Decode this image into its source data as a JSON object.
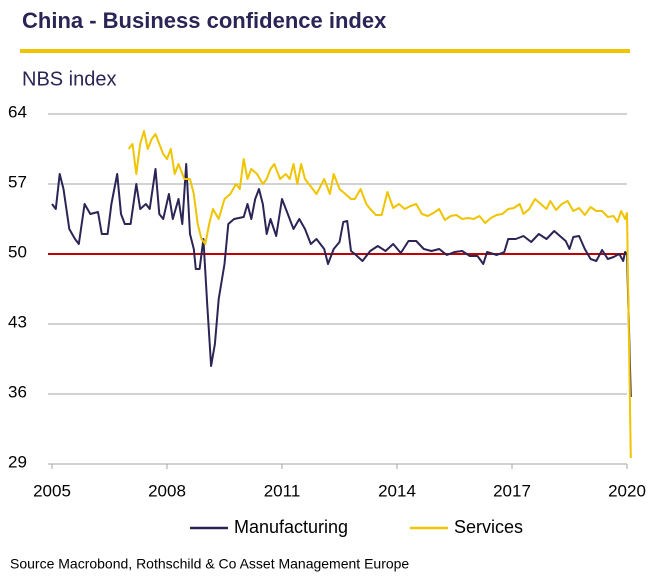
{
  "chart_data": {
    "type": "line",
    "title": "China - Business confidence index",
    "subtitle": "NBS index",
    "source": "Source Macrobond, Rothschild & Co Asset Management  Europe",
    "xlim": [
      2005,
      2020
    ],
    "xticks": [
      2005,
      2008,
      2011,
      2014,
      2017,
      2020
    ],
    "ylim": [
      29,
      64
    ],
    "yticks": [
      29,
      36,
      43,
      50,
      57,
      64
    ],
    "grid": true,
    "reference_line": {
      "value": 50,
      "color": "#c00000"
    },
    "legend": "bottom",
    "series": [
      {
        "name": "Manufacturing",
        "color": "#2b2556",
        "x": [
          2005.0,
          2005.1,
          2005.2,
          2005.3,
          2005.45,
          2005.6,
          2005.7,
          2005.85,
          2006.0,
          2006.2,
          2006.3,
          2006.45,
          2006.55,
          2006.7,
          2006.8,
          2006.9,
          2007.05,
          2007.2,
          2007.3,
          2007.45,
          2007.55,
          2007.7,
          2007.8,
          2007.9,
          2008.05,
          2008.15,
          2008.3,
          2008.4,
          2008.5,
          2008.6,
          2008.7,
          2008.75,
          2008.85,
          2008.95,
          2009.05,
          2009.15,
          2009.25,
          2009.35,
          2009.5,
          2009.6,
          2009.75,
          2010.0,
          2010.1,
          2010.2,
          2010.3,
          2010.4,
          2010.5,
          2010.6,
          2010.7,
          2010.85,
          2011.0,
          2011.15,
          2011.3,
          2011.45,
          2011.6,
          2011.75,
          2011.9,
          2012.1,
          2012.2,
          2012.35,
          2012.5,
          2012.6,
          2012.7,
          2012.8,
          2012.9,
          2013.1,
          2013.3,
          2013.5,
          2013.7,
          2013.9,
          2014.1,
          2014.3,
          2014.5,
          2014.7,
          2014.9,
          2015.1,
          2015.3,
          2015.5,
          2015.7,
          2015.9,
          2016.1,
          2016.25,
          2016.35,
          2016.6,
          2016.8,
          2016.9,
          2017.1,
          2017.3,
          2017.5,
          2017.7,
          2017.9,
          2018.1,
          2018.25,
          2018.4,
          2018.5,
          2018.6,
          2018.75,
          2018.9,
          2019.05,
          2019.2,
          2019.35,
          2019.5,
          2019.65,
          2019.8,
          2019.9,
          2019.95,
          2020.0,
          2020.1
        ],
        "values": [
          55,
          54.5,
          58,
          56.5,
          52.5,
          51.5,
          51,
          55,
          54,
          54.2,
          52,
          52,
          55,
          58,
          54,
          53,
          53,
          57,
          54.5,
          55,
          54.5,
          58.5,
          54,
          53.5,
          56,
          53.5,
          55.5,
          53,
          59,
          52,
          50.5,
          48.5,
          48.5,
          51.5,
          45,
          38.8,
          41,
          45.5,
          49,
          53,
          53.5,
          53.7,
          55,
          53.5,
          55.5,
          56.5,
          55,
          52,
          53.5,
          51.8,
          55.5,
          54,
          52.5,
          53.5,
          52.5,
          51,
          51.5,
          50.5,
          49,
          50.5,
          51.2,
          53.2,
          53.3,
          50.3,
          50,
          49.3,
          50.3,
          50.8,
          50.3,
          51,
          50.1,
          51.3,
          51.3,
          50.5,
          50.3,
          50.5,
          49.9,
          50.2,
          50.3,
          49.8,
          49.8,
          49,
          50.2,
          49.9,
          50.2,
          51.5,
          51.5,
          51.8,
          51.2,
          52,
          51.5,
          52.3,
          51.8,
          51.3,
          50.5,
          51.7,
          51.8,
          50.5,
          49.5,
          49.3,
          50.4,
          49.5,
          49.7,
          50,
          49.3,
          50.2,
          50,
          35.7
        ]
      },
      {
        "name": "Services",
        "color": "#f0c400",
        "x": [
          2007.0,
          2007.1,
          2007.2,
          2007.3,
          2007.4,
          2007.5,
          2007.6,
          2007.7,
          2007.8,
          2007.9,
          2008.0,
          2008.1,
          2008.2,
          2008.3,
          2008.45,
          2008.6,
          2008.7,
          2008.8,
          2008.9,
          2009.0,
          2009.1,
          2009.2,
          2009.35,
          2009.5,
          2009.65,
          2009.8,
          2009.9,
          2010.0,
          2010.1,
          2010.2,
          2010.35,
          2010.5,
          2010.6,
          2010.7,
          2010.8,
          2010.95,
          2011.1,
          2011.2,
          2011.3,
          2011.4,
          2011.5,
          2011.6,
          2011.8,
          2011.9,
          2012.1,
          2012.25,
          2012.35,
          2012.5,
          2012.65,
          2012.8,
          2012.9,
          2013.05,
          2013.2,
          2013.3,
          2013.45,
          2013.6,
          2013.75,
          2013.9,
          2014.05,
          2014.2,
          2014.35,
          2014.5,
          2014.65,
          2014.8,
          2014.95,
          2015.1,
          2015.25,
          2015.4,
          2015.55,
          2015.7,
          2015.85,
          2016.0,
          2016.15,
          2016.3,
          2016.45,
          2016.6,
          2016.75,
          2016.9,
          2017.05,
          2017.2,
          2017.3,
          2017.45,
          2017.6,
          2017.75,
          2017.9,
          2018.0,
          2018.15,
          2018.3,
          2018.45,
          2018.6,
          2018.75,
          2018.9,
          2019.05,
          2019.2,
          2019.35,
          2019.5,
          2019.65,
          2019.75,
          2019.85,
          2019.95,
          2020.0,
          2020.1
        ],
        "values": [
          60.5,
          61,
          58,
          61,
          62.3,
          60.5,
          61.5,
          62,
          61,
          60,
          59.5,
          60.5,
          58,
          59,
          57.5,
          57.5,
          56,
          53,
          51.5,
          51,
          53,
          54.5,
          53.5,
          55.5,
          56,
          57,
          56.5,
          59.5,
          57.5,
          58.5,
          58,
          57,
          57.5,
          58.5,
          59,
          57.5,
          58,
          57.5,
          59,
          57,
          59,
          57.5,
          56.5,
          56,
          57.5,
          56,
          58,
          56.5,
          56,
          55.5,
          55.5,
          56.5,
          55,
          54.5,
          53.9,
          53.9,
          56.2,
          54.6,
          55,
          54.5,
          54.8,
          55,
          54,
          53.8,
          54.1,
          54.5,
          53.4,
          53.8,
          53.9,
          53.5,
          53.6,
          53.5,
          53.8,
          53.1,
          53.6,
          53.9,
          54,
          54.5,
          54.6,
          55,
          54,
          54.5,
          55.5,
          55,
          54.5,
          55.3,
          54.4,
          55,
          55.3,
          54.3,
          54.6,
          53.9,
          54.7,
          54.3,
          54.3,
          53.7,
          53.8,
          53.2,
          54.3,
          53.5,
          54.1,
          29.6
        ]
      }
    ]
  }
}
